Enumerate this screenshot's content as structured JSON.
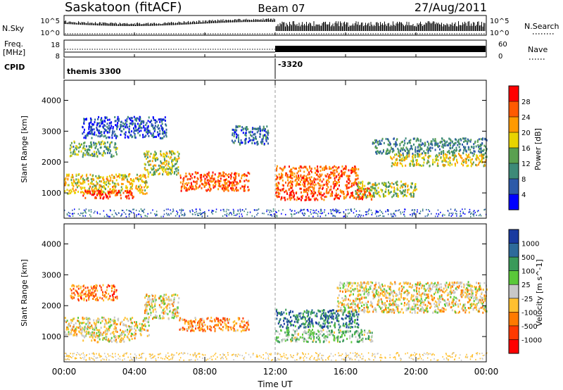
{
  "header": {
    "station": "Saskatoon (fitACF)",
    "beam": "Beam 07",
    "date": "27/Aug/2011"
  },
  "top_panels": {
    "nsky_label": "N.Sky",
    "nsky_ticks": [
      "10^5",
      "10^0"
    ],
    "nsearch_label": "N.Search",
    "nsearch_ticks": [
      "10^5",
      "10^0"
    ],
    "freq_label_1": "Freq.",
    "freq_label_2": "[MHz]",
    "freq_ticks": [
      "18",
      "8"
    ],
    "nave_label": "Nave",
    "nave_ticks": [
      "60",
      "0"
    ],
    "cpid_label": "CPID",
    "cpid_annotations": [
      {
        "text": "themis 3300",
        "t": 0.0
      },
      {
        "text": "-3320",
        "t": 12.0
      }
    ]
  },
  "chart_data": [
    {
      "type": "heatmap",
      "name": "power",
      "ylabel": "Slant Range [km]",
      "ylim": [
        180,
        4650
      ],
      "yticks": [
        1000,
        2000,
        3000,
        4000
      ],
      "colorbar": {
        "label": "Power [dB]",
        "ticks": [
          "28",
          "24",
          "20",
          "16",
          "12",
          "8",
          "4"
        ],
        "colors": [
          "#ff0000",
          "#ff5a00",
          "#ff9a00",
          "#e8d400",
          "#5aa050",
          "#3d8a78",
          "#2d5aa8",
          "#0000ff"
        ]
      },
      "regions": [
        {
          "t": [
            0.0,
            4.8
          ],
          "r": [
            1000,
            1650
          ],
          "level": 0.6
        },
        {
          "t": [
            1.0,
            4.0
          ],
          "r": [
            850,
            1100
          ],
          "level": 0.9
        },
        {
          "t": [
            0.3,
            3.0
          ],
          "r": [
            2200,
            2700
          ],
          "level": 0.4
        },
        {
          "t": [
            1.0,
            5.8
          ],
          "r": [
            2800,
            3500
          ],
          "level": 0.15
        },
        {
          "t": [
            4.5,
            6.5
          ],
          "r": [
            1600,
            2400
          ],
          "level": 0.5
        },
        {
          "t": [
            6.5,
            10.5
          ],
          "r": [
            1100,
            1700
          ],
          "level": 0.8
        },
        {
          "t": [
            9.5,
            11.6
          ],
          "r": [
            2600,
            3200
          ],
          "level": 0.25
        },
        {
          "t": [
            12.0,
            16.7
          ],
          "r": [
            1200,
            1900
          ],
          "level": 0.8
        },
        {
          "t": [
            12.0,
            17.5
          ],
          "r": [
            800,
            1200
          ],
          "level": 0.85
        },
        {
          "t": [
            16.5,
            20.0
          ],
          "r": [
            900,
            1400
          ],
          "level": 0.5
        },
        {
          "t": [
            18.5,
            24.0
          ],
          "r": [
            1900,
            2300
          ],
          "level": 0.55
        },
        {
          "t": [
            17.5,
            24.0
          ],
          "r": [
            2300,
            2800
          ],
          "level": 0.3
        }
      ]
    },
    {
      "type": "heatmap",
      "name": "velocity",
      "ylabel": "Slant Range [km]",
      "ylim": [
        180,
        4650
      ],
      "yticks": [
        1000,
        2000,
        3000,
        4000
      ],
      "xlabel": "Time UT",
      "xticks": [
        "00:00",
        "04:00",
        "08:00",
        "12:00",
        "16:00",
        "20:00",
        "00:00"
      ],
      "xlim": [
        0,
        24
      ],
      "colorbar": {
        "label": "Velocity [m s^-1]",
        "ticks": [
          "1000",
          "500",
          "100",
          "25",
          "-25",
          "-100",
          "-500",
          "-1000"
        ],
        "colors": [
          "#1a3aa0",
          "#2d6a9a",
          "#3a9a5a",
          "#5ac83a",
          "#c8c8c8",
          "#ffc030",
          "#ff7a00",
          "#ff3a00",
          "#ff0000"
        ]
      },
      "regions": [
        {
          "t": [
            0.0,
            4.8
          ],
          "r": [
            1050,
            1650
          ],
          "level": 0.45
        },
        {
          "t": [
            1.0,
            4.0
          ],
          "r": [
            850,
            1050
          ],
          "level": 0.45
        },
        {
          "t": [
            0.3,
            3.0
          ],
          "r": [
            2200,
            2700
          ],
          "level": 0.25
        },
        {
          "t": [
            4.5,
            6.5
          ],
          "r": [
            1600,
            2400
          ],
          "level": 0.45
        },
        {
          "t": [
            6.5,
            10.5
          ],
          "r": [
            1200,
            1650
          ],
          "level": 0.3
        },
        {
          "t": [
            12.0,
            16.7
          ],
          "r": [
            1300,
            1900
          ],
          "level": 0.8
        },
        {
          "t": [
            12.0,
            17.5
          ],
          "r": [
            850,
            1250
          ],
          "level": 0.6
        },
        {
          "t": [
            15.5,
            24.0
          ],
          "r": [
            1800,
            2800
          ],
          "level": 0.45
        }
      ]
    }
  ]
}
